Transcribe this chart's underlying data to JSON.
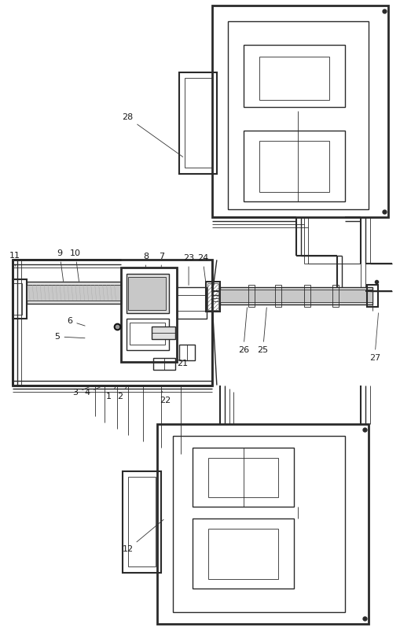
{
  "bg_color": "#ffffff",
  "line_color": "#2a2a2a",
  "gray_fill": "#c8c8c8",
  "gray_light_fill": "#e0e0e0",
  "green_line": "#3a6e3a"
}
